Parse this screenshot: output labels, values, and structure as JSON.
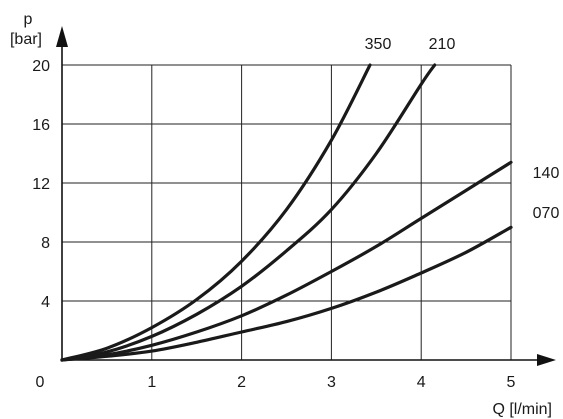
{
  "chart_data": {
    "type": "line",
    "y_axis": {
      "symbol": "p",
      "unit": "[bar]"
    },
    "x_axis": {
      "label": "Q [l/min]"
    },
    "xlim": [
      0,
      5
    ],
    "ylim": [
      0,
      20
    ],
    "x_ticks": [
      0,
      1,
      2,
      3,
      4,
      5
    ],
    "y_ticks": [
      4,
      8,
      12,
      16,
      20
    ],
    "origin_label": "0",
    "grid": true,
    "series": [
      {
        "name": "350",
        "points": [
          [
            0,
            0
          ],
          [
            0.5,
            0.8
          ],
          [
            1,
            2.2
          ],
          [
            1.5,
            4.1
          ],
          [
            2,
            6.7
          ],
          [
            2.5,
            10.2
          ],
          [
            3,
            14.9
          ],
          [
            3.43,
            20
          ]
        ]
      },
      {
        "name": "210",
        "points": [
          [
            0,
            0
          ],
          [
            0.5,
            0.55
          ],
          [
            1,
            1.6
          ],
          [
            1.5,
            3.1
          ],
          [
            2,
            5.0
          ],
          [
            2.5,
            7.4
          ],
          [
            3,
            10.2
          ],
          [
            3.5,
            14.0
          ],
          [
            4,
            18.7
          ],
          [
            4.15,
            20
          ]
        ]
      },
      {
        "name": "140",
        "points": [
          [
            0,
            0
          ],
          [
            0.5,
            0.35
          ],
          [
            1,
            1.0
          ],
          [
            1.5,
            1.9
          ],
          [
            2,
            3.0
          ],
          [
            2.5,
            4.4
          ],
          [
            3,
            6.0
          ],
          [
            3.5,
            7.7
          ],
          [
            4,
            9.6
          ],
          [
            4.5,
            11.5
          ],
          [
            5,
            13.4
          ]
        ]
      },
      {
        "name": "070",
        "points": [
          [
            0,
            0
          ],
          [
            0.5,
            0.25
          ],
          [
            1,
            0.6
          ],
          [
            1.5,
            1.2
          ],
          [
            2,
            1.9
          ],
          [
            2.5,
            2.6
          ],
          [
            3,
            3.5
          ],
          [
            3.5,
            4.6
          ],
          [
            4,
            5.9
          ],
          [
            4.5,
            7.3
          ],
          [
            5,
            9.0
          ]
        ]
      }
    ]
  }
}
